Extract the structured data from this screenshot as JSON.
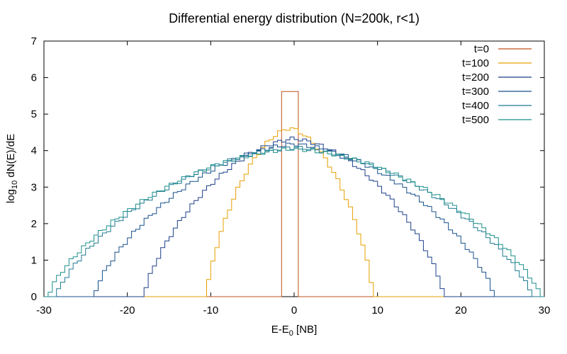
{
  "chart_data": {
    "type": "line",
    "style": "step-histogram",
    "title": "Differential energy distribution (N=200k, r<1)",
    "xlabel": {
      "main": "E-E",
      "sub": "0",
      "suffix": " [NB]"
    },
    "ylabel": {
      "prefix": "log",
      "sub": "10",
      "suffix": " dN(E)/dE"
    },
    "xlim": [
      -30,
      30
    ],
    "ylim": [
      0,
      7
    ],
    "xticks": [
      -30,
      -20,
      -10,
      0,
      10,
      20,
      30
    ],
    "yticks": [
      0,
      1,
      2,
      3,
      4,
      5,
      6,
      7
    ],
    "grid": false,
    "legend_position": "top-right",
    "bin_width": 0.5,
    "series": [
      {
        "name": "t=0",
        "color": "#c0501a",
        "center": -0.5,
        "peak": 5.62,
        "extent": 1.0
      },
      {
        "name": "t=100",
        "color": "#e69f00",
        "center": -0.5,
        "peak": 4.62,
        "extent": 10.0
      },
      {
        "name": "t=200",
        "color": "#1c3f8a",
        "center": 0.0,
        "peak": 4.33,
        "extent": 18.0
      },
      {
        "name": "t=300",
        "color": "#17508c",
        "center": 0.0,
        "peak": 4.18,
        "extent": 24.0
      },
      {
        "name": "t=400",
        "color": "#1f7a92",
        "center": 0.0,
        "peak": 4.08,
        "extent": 28.5
      },
      {
        "name": "t=500",
        "color": "#1a8f8a",
        "center": 0.0,
        "peak": 4.05,
        "extent": 29.5
      }
    ]
  }
}
